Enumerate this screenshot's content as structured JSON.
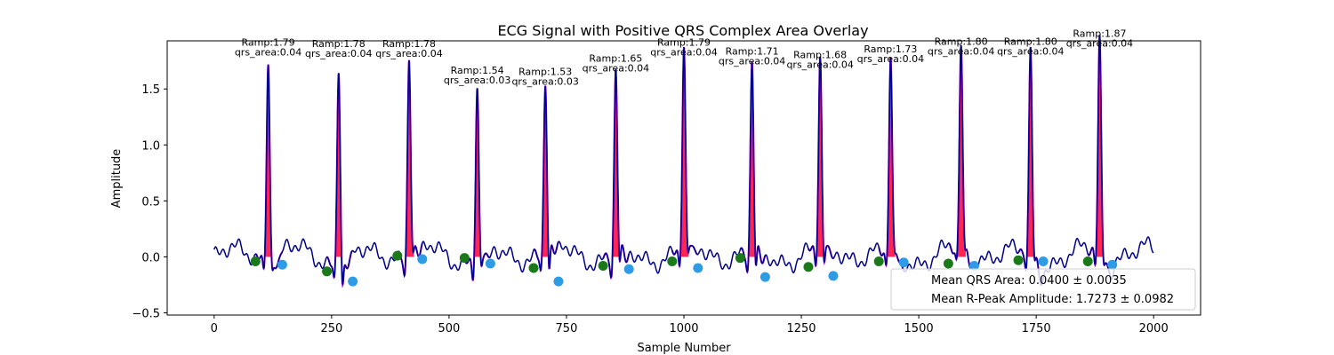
{
  "chart_data": {
    "type": "line",
    "title": "ECG Signal with Positive QRS Complex Area Overlay",
    "xlabel": "Sample Number",
    "ylabel": "Amplitude",
    "xlim": [
      -100,
      2100
    ],
    "ylim": [
      -0.52,
      1.93
    ],
    "xticks": [
      0,
      250,
      500,
      750,
      1000,
      1250,
      1500,
      1750,
      2000
    ],
    "yticks": [
      -0.5,
      0.0,
      0.5,
      1.0,
      1.5
    ],
    "ytick_labels": [
      "−0.5",
      "0.0",
      "0.5",
      "1.0",
      "1.5"
    ],
    "grid": false,
    "legend_position": "lower-right",
    "colors": {
      "signal": "#00008b",
      "qrs_segment": "#9400d3",
      "qrs_area": "#ff0033",
      "q_marker": "#1a7a1a",
      "s_marker": "#2e9be6"
    },
    "beats": [
      {
        "r_x": 115,
        "r_amp": 1.79,
        "qrs_area": 0.04,
        "ann_line1": "Ramp:1.79",
        "ann_line2": "qrs_area:0.04",
        "q_x": 88,
        "q_y": -0.04,
        "s_x": 145,
        "s_y": -0.07
      },
      {
        "r_x": 265,
        "r_amp": 1.78,
        "qrs_area": 0.04,
        "ann_line1": "Ramp:1.78",
        "ann_line2": "qrs_area:0.04",
        "q_x": 240,
        "q_y": -0.13,
        "s_x": 295,
        "s_y": -0.22
      },
      {
        "r_x": 415,
        "r_amp": 1.78,
        "qrs_area": 0.04,
        "ann_line1": "Ramp:1.78",
        "ann_line2": "qrs_area:0.04",
        "q_x": 390,
        "q_y": 0.01,
        "s_x": 443,
        "s_y": -0.02
      },
      {
        "r_x": 560,
        "r_amp": 1.54,
        "qrs_area": 0.03,
        "ann_line1": "Ramp:1.54",
        "ann_line2": "qrs_area:0.03",
        "q_x": 533,
        "q_y": -0.01,
        "s_x": 588,
        "s_y": -0.06
      },
      {
        "r_x": 705,
        "r_amp": 1.53,
        "qrs_area": 0.03,
        "ann_line1": "Ramp:1.53",
        "ann_line2": "qrs_area:0.03",
        "q_x": 680,
        "q_y": -0.1,
        "s_x": 733,
        "s_y": -0.22
      },
      {
        "r_x": 855,
        "r_amp": 1.65,
        "qrs_area": 0.04,
        "ann_line1": "Ramp:1.65",
        "ann_line2": "qrs_area:0.04",
        "q_x": 828,
        "q_y": -0.08,
        "s_x": 883,
        "s_y": -0.11
      },
      {
        "r_x": 1000,
        "r_amp": 1.79,
        "qrs_area": 0.04,
        "ann_line1": "Ramp:1.79",
        "ann_line2": "qrs_area:0.04",
        "q_x": 975,
        "q_y": -0.04,
        "s_x": 1030,
        "s_y": -0.1
      },
      {
        "r_x": 1145,
        "r_amp": 1.71,
        "qrs_area": 0.04,
        "ann_line1": "Ramp:1.71",
        "ann_line2": "qrs_area:0.04",
        "q_x": 1120,
        "q_y": -0.01,
        "s_x": 1173,
        "s_y": -0.18
      },
      {
        "r_x": 1290,
        "r_amp": 1.68,
        "qrs_area": 0.04,
        "ann_line1": "Ramp:1.68",
        "ann_line2": "qrs_area:0.04",
        "q_x": 1265,
        "q_y": -0.09,
        "s_x": 1318,
        "s_y": -0.17
      },
      {
        "r_x": 1440,
        "r_amp": 1.73,
        "qrs_area": 0.04,
        "ann_line1": "Ramp:1.73",
        "ann_line2": "qrs_area:0.04",
        "q_x": 1415,
        "q_y": -0.04,
        "s_x": 1468,
        "s_y": -0.05
      },
      {
        "r_x": 1590,
        "r_amp": 1.8,
        "qrs_area": 0.04,
        "ann_line1": "Ramp:1.80",
        "ann_line2": "qrs_area:0.04",
        "q_x": 1563,
        "q_y": -0.06,
        "s_x": 1618,
        "s_y": -0.08
      },
      {
        "r_x": 1738,
        "r_amp": 1.8,
        "qrs_area": 0.04,
        "ann_line1": "Ramp:1.80",
        "ann_line2": "qrs_area:0.04",
        "q_x": 1712,
        "q_y": -0.03,
        "s_x": 1765,
        "s_y": -0.04
      },
      {
        "r_x": 1885,
        "r_amp": 1.87,
        "qrs_area": 0.04,
        "ann_line1": "Ramp:1.87",
        "ann_line2": "qrs_area:0.04",
        "q_x": 1860,
        "q_y": -0.04,
        "s_x": 1912,
        "s_y": -0.07
      }
    ],
    "legend": [
      {
        "label": "Mean QRS Area: 0.0400 ± 0.0035"
      },
      {
        "label": "Mean R-Peak Amplitude: 1.7273 ± 0.0982"
      }
    ]
  }
}
